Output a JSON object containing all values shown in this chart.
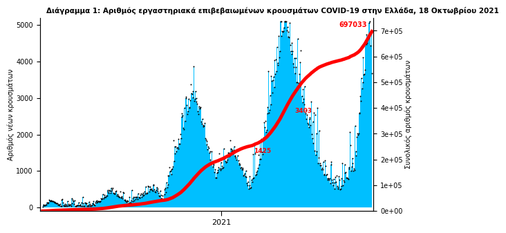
{
  "title": "Διάγραμμα 1: Αριθμός εργαστηριακά επιβεβαιωμένων κρουσμάτων COVID-19 στην Ελλάδα, 18 Οκτωβρίου 2021",
  "ylabel_left": "Αριθμός νέων κρουσμάτων",
  "ylabel_right": "Συνολικός αριθμός κρουσμάτων",
  "xlabel": "2021",
  "ylim_left": [
    -100,
    5200
  ],
  "ylim_right": [
    0,
    750000
  ],
  "bar_color": "#00BFFF",
  "line_color": "#FF0000",
  "dot_color": "#000000",
  "bg_color": "#FFFFFF",
  "annotation_total": "697033",
  "annotation_peak1": "3403",
  "annotation_peak2": "1425",
  "n_days": 570,
  "seed": 42
}
